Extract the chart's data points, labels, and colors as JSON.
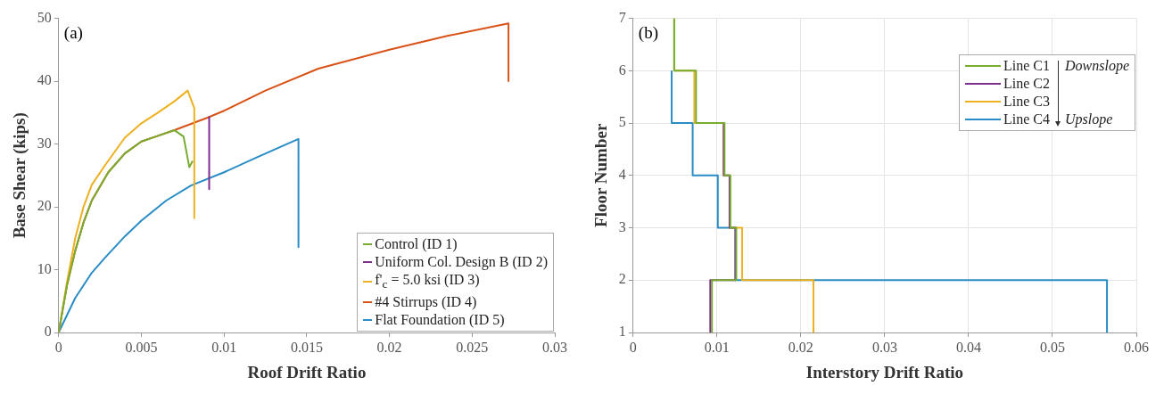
{
  "chart_data": [
    {
      "type": "line",
      "xlabel": "Roof Drift Ratio",
      "ylabel": "Base Shear (kips)",
      "xlim": [
        0,
        0.03
      ],
      "xticks": [
        0,
        0.005,
        0.01,
        0.015,
        0.02,
        0.025,
        0.03
      ],
      "ylim": [
        0,
        50
      ],
      "yticks": [
        0,
        10,
        20,
        30,
        40,
        50
      ],
      "legend": "bottom right",
      "annotations": [
        "(a)"
      ],
      "series": [
        {
          "name": "Control (ID 1)",
          "color": "#77ac30",
          "x": [
            0,
            0.0005,
            0.001,
            0.0015,
            0.002,
            0.003,
            0.004,
            0.005,
            0.006,
            0.007,
            0.00755,
            0.0079,
            0.0081
          ],
          "values": [
            0,
            7.5,
            13,
            17.5,
            21,
            25.5,
            28.5,
            30.4,
            31.3,
            32.2,
            31.2,
            26.3,
            27.3
          ]
        },
        {
          "name": "Uniform Col. Design B (ID 2)",
          "color": "#7e2f8e",
          "x": [
            0.0091,
            0.0091
          ],
          "values": [
            34.3,
            22.8
          ]
        },
        {
          "name": "f'$_{c}$ = 5.0 ksi (ID 3)",
          "color": "#edb120",
          "x": [
            0,
            0.0005,
            0.001,
            0.0015,
            0.002,
            0.0028,
            0.004,
            0.005,
            0.006,
            0.007,
            0.0078,
            0.0082,
            0.0082
          ],
          "values": [
            0,
            8,
            15,
            20,
            23.5,
            26.6,
            31,
            33.3,
            35,
            36.8,
            38.5,
            35.7,
            18.2
          ]
        },
        {
          "name": "#4 Stirrups (ID 4)",
          "color": "#d95319",
          "x": [
            0,
            0.0005,
            0.001,
            0.0015,
            0.002,
            0.003,
            0.004,
            0.005,
            0.006,
            0.007,
            0.008,
            0.009,
            0.01,
            0.0125,
            0.0157,
            0.02,
            0.0235,
            0.0272,
            0.0272
          ],
          "values": [
            0,
            7.5,
            13,
            17.5,
            21,
            25.5,
            28.5,
            30.4,
            31.3,
            32.2,
            33.2,
            34.2,
            35.3,
            38.5,
            42,
            45,
            47.2,
            49.2,
            40
          ]
        },
        {
          "name": "Flat Foundation (ID 5)",
          "color": "#2a8cc4",
          "x": [
            0,
            0.001,
            0.002,
            0.0028,
            0.004,
            0.005,
            0.0065,
            0.008,
            0.01,
            0.012,
            0.0145,
            0.0145
          ],
          "values": [
            0,
            5.5,
            9.5,
            11.9,
            15.3,
            17.8,
            21,
            23.4,
            25.5,
            27.9,
            30.8,
            13.6
          ]
        }
      ]
    },
    {
      "type": "line",
      "xlabel": "Interstory Drift Ratio",
      "ylabel": "Floor Number",
      "xlim": [
        0,
        0.06
      ],
      "xticks": [
        0,
        0.01,
        0.02,
        0.03,
        0.04,
        0.05,
        0.06
      ],
      "ylim": [
        1,
        7
      ],
      "yticks": [
        1,
        2,
        3,
        4,
        5,
        6,
        7
      ],
      "grid": true,
      "legend": "top right",
      "annotations": [
        "(b)",
        "Downslope",
        "Upslope"
      ],
      "series": [
        {
          "name": "Line C1",
          "color": "#77ac30",
          "x": [
            0.0094,
            0.0094,
            0.0123,
            0.0123,
            0.0116,
            0.0116,
            0.0109,
            0.0109,
            0.0075,
            0.0075,
            0.0049,
            0.0049
          ],
          "values": [
            1,
            2,
            2,
            3,
            3,
            4,
            4,
            5,
            5,
            6,
            6,
            7
          ]
        },
        {
          "name": "Line C2",
          "color": "#7e2f8e",
          "x": [
            0.0092,
            0.0092,
            0.0122,
            0.0122,
            0.0115,
            0.0115,
            0.0108,
            0.0108
          ],
          "values": [
            1,
            2,
            2,
            3,
            3,
            4,
            4,
            5
          ]
        },
        {
          "name": "Line C3",
          "color": "#edb120",
          "x": [
            0.0215,
            0.0215,
            0.013,
            0.013,
            0.0115,
            0.0115,
            0.0108,
            0.0108,
            0.0073,
            0.0073,
            0.0049,
            0.0049
          ],
          "values": [
            1,
            2,
            2,
            3,
            3,
            4,
            4,
            5,
            5,
            6,
            6,
            7
          ]
        },
        {
          "name": "Line C4",
          "color": "#2a8cc4",
          "x": [
            0.0565,
            0.0565,
            0.0122,
            0.0122,
            0.0101,
            0.0101,
            0.0071,
            0.0071,
            0.0046,
            0.0046
          ],
          "values": [
            1,
            2,
            2,
            3,
            3,
            4,
            4,
            5,
            5,
            6
          ]
        }
      ]
    }
  ]
}
